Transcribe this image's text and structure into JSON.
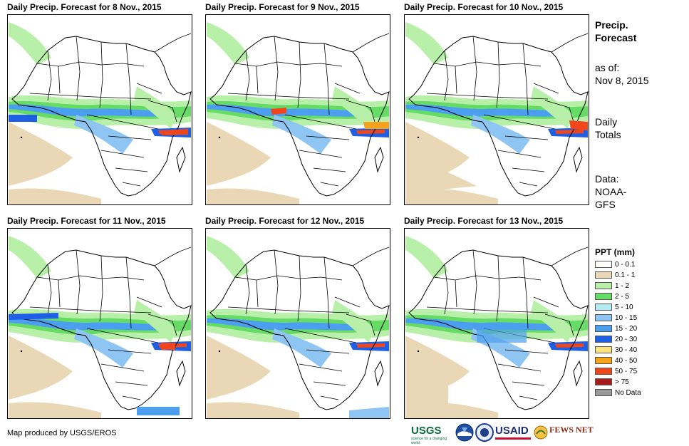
{
  "panels": [
    {
      "title": "Daily Precip. Forecast for 8 Nov., 2015"
    },
    {
      "title": "Daily Precip. Forecast for 9 Nov., 2015"
    },
    {
      "title": "Daily Precip. Forecast for 10 Nov., 2015"
    },
    {
      "title": "Daily Precip. Forecast for 11 Nov., 2015"
    },
    {
      "title": "Daily Precip. Forecast for 12 Nov., 2015"
    },
    {
      "title": "Daily Precip. Forecast for 13 Nov., 2015"
    }
  ],
  "side": {
    "title_line1": "Precip.",
    "title_line2": "Forecast",
    "asof_line1": "as of:",
    "asof_line2": "Nov 8, 2015",
    "totals_line1": "Daily",
    "totals_line2": "Totals",
    "data_line1": "Data:",
    "data_line2": "NOAA-",
    "data_line3": "GFS"
  },
  "legend": {
    "title": "PPT (mm)",
    "items": [
      {
        "label": "0 - 0.1",
        "color": "#ffffff"
      },
      {
        "label": "0.1 - 1",
        "color": "#ead7b5"
      },
      {
        "label": "1 - 2",
        "color": "#b9f0a9"
      },
      {
        "label": "2 - 5",
        "color": "#66dc66"
      },
      {
        "label": "5 - 10",
        "color": "#b2ecf2"
      },
      {
        "label": "10 - 15",
        "color": "#8ec5f2"
      },
      {
        "label": "15 - 20",
        "color": "#4c9ef0"
      },
      {
        "label": "20 - 30",
        "color": "#1f5fe6"
      },
      {
        "label": "30 - 40",
        "color": "#fbe27e"
      },
      {
        "label": "40 - 50",
        "color": "#f5a21d"
      },
      {
        "label": "50 - 75",
        "color": "#f0461a"
      },
      {
        "label": "> 75",
        "color": "#a51d1d"
      },
      {
        "label": "No Data",
        "color": "#9a9a9a"
      }
    ]
  },
  "credit": "Map produced by USGS/EROS",
  "logos": {
    "usgs": "USGS",
    "usgs_tagline": "science for a changing world",
    "usaid": "USAID",
    "fewsnet": "FEWS NET"
  }
}
